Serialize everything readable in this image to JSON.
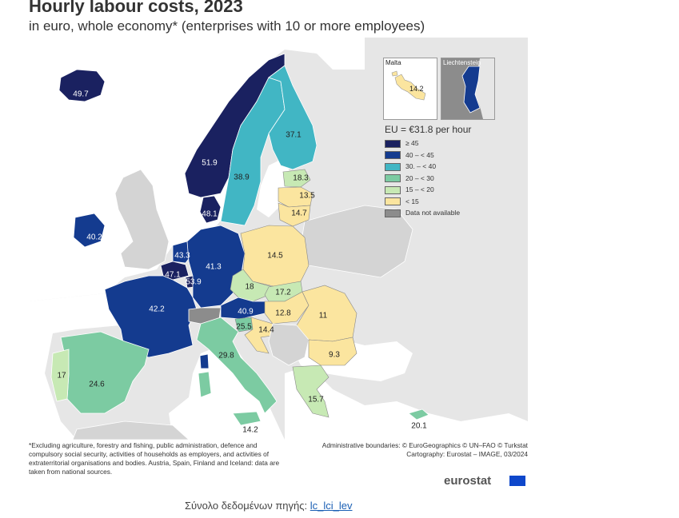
{
  "title": "Hourly labour costs, 2023",
  "subtitle": "in euro, whole economy* (enterprises with 10 or more employees)",
  "legend": {
    "title": "EU = €31.8 per hour",
    "items": [
      {
        "label": "≥ 45",
        "color": "#1a2160"
      },
      {
        "label": "40 – < 45",
        "color": "#143b8f"
      },
      {
        "label": "30. – < 40",
        "color": "#41b6c4"
      },
      {
        "label": "20 – < 30",
        "color": "#7ccba2"
      },
      {
        "label": "15 – < 20",
        "color": "#c7e9b4"
      },
      {
        "label": "< 15",
        "color": "#fbe59f"
      },
      {
        "label": "Data not available",
        "color": "#8c8c8c"
      }
    ]
  },
  "insets": {
    "malta": {
      "name": "Malta",
      "value": "14.2"
    },
    "liechtenstein": {
      "name": "Liechtenstein"
    }
  },
  "countries": [
    {
      "code": "IS",
      "value": "49.7",
      "color": "#1a2160"
    },
    {
      "code": "NO",
      "value": "51.9",
      "color": "#1a2160"
    },
    {
      "code": "SE",
      "value": "38.9",
      "color": "#41b6c4"
    },
    {
      "code": "FI",
      "value": "37.1",
      "color": "#41b6c4"
    },
    {
      "code": "EE",
      "value": "18.3",
      "color": "#c7e9b4"
    },
    {
      "code": "LV",
      "value": "13.5",
      "color": "#fbe59f"
    },
    {
      "code": "LT",
      "value": "14.7",
      "color": "#fbe59f"
    },
    {
      "code": "DK",
      "value": "48.1",
      "color": "#1a2160"
    },
    {
      "code": "IE",
      "value": "40.2",
      "color": "#143b8f"
    },
    {
      "code": "NL",
      "value": "43.3",
      "color": "#143b8f"
    },
    {
      "code": "BE",
      "value": "47.1",
      "color": "#1a2160"
    },
    {
      "code": "LU",
      "value": "53.9",
      "color": "#1a2160"
    },
    {
      "code": "DE",
      "value": "41.3",
      "color": "#143b8f"
    },
    {
      "code": "PL",
      "value": "14.5",
      "color": "#fbe59f"
    },
    {
      "code": "CZ",
      "value": "18",
      "color": "#c7e9b4"
    },
    {
      "code": "SK",
      "value": "17.2",
      "color": "#c7e9b4"
    },
    {
      "code": "AT",
      "value": "40.9",
      "color": "#143b8f"
    },
    {
      "code": "HU",
      "value": "12.8",
      "color": "#fbe59f"
    },
    {
      "code": "RO",
      "value": "11",
      "color": "#fbe59f"
    },
    {
      "code": "SI",
      "value": "25.5",
      "color": "#7ccba2"
    },
    {
      "code": "HR",
      "value": "14.4",
      "color": "#fbe59f"
    },
    {
      "code": "BG",
      "value": "9.3",
      "color": "#fbe59f"
    },
    {
      "code": "FR",
      "value": "42.2",
      "color": "#143b8f"
    },
    {
      "code": "CH",
      "value": "",
      "color": "#8c8c8c"
    },
    {
      "code": "IT",
      "value": "29.8",
      "color": "#7ccba2"
    },
    {
      "code": "PT",
      "value": "17",
      "color": "#c7e9b4"
    },
    {
      "code": "ES",
      "value": "24.6",
      "color": "#7ccba2"
    },
    {
      "code": "EL",
      "value": "15.7",
      "color": "#c7e9b4"
    },
    {
      "code": "CY",
      "value": "20.1",
      "color": "#7ccba2"
    },
    {
      "code": "MT",
      "value": "14.2",
      "color": "#fbe59f"
    }
  ],
  "footnote": "*Excluding agriculture, forestry and fishing, public administration, defence and compulsory social security, activities of households as employers, and activities of extraterritorial organisations and bodies. Austria, Spain, Finland and Iceland: data are taken from national sources.",
  "credits": {
    "boundaries": "Administrative boundaries: © EuroGeographics © UN–FAO © Turkstat",
    "cartography": "Cartography: Eurostat – IMAGE, 03/2024"
  },
  "logo": "eurostat",
  "source": {
    "label": "Σύνολο δεδομένων πηγής:",
    "link": "lc_lci_lev"
  }
}
